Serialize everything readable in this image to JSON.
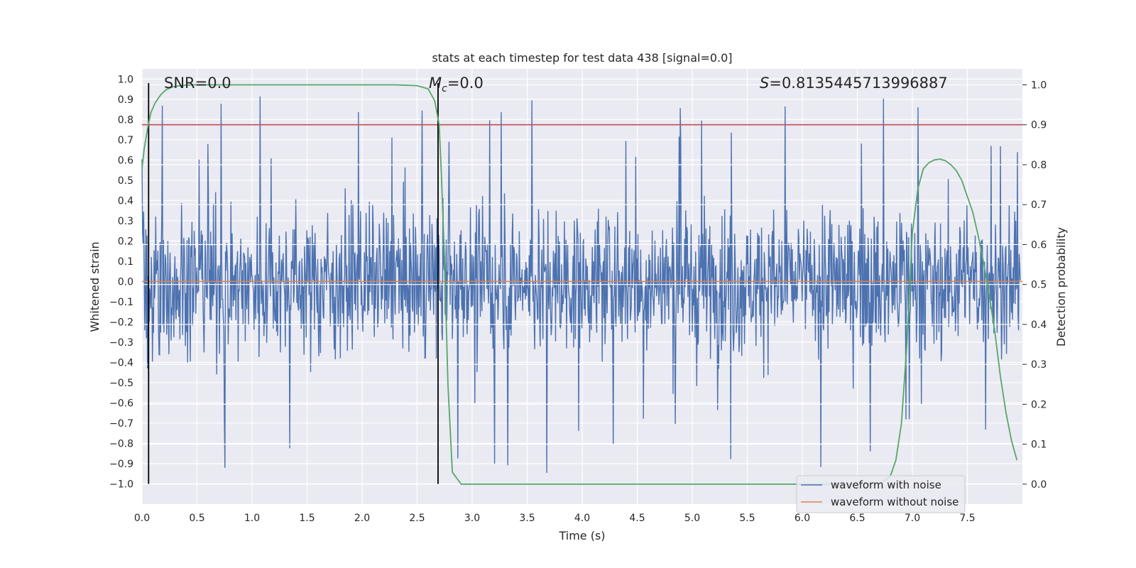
{
  "chart_data": {
    "type": "line",
    "title": "stats at each timestep for test data 438 [signal=0.0]",
    "xlabel": "Time (s)",
    "ylabel": "Whitened strain",
    "y2label": "Detection probability",
    "xlim": [
      0.0,
      8.0
    ],
    "ylim": [
      -1.1,
      1.05
    ],
    "y2lim": [
      -0.05,
      1.04
    ],
    "x_ticks": [
      0.0,
      0.5,
      1.0,
      1.5,
      2.0,
      2.5,
      3.0,
      3.5,
      4.0,
      4.5,
      5.0,
      5.5,
      6.0,
      6.5,
      7.0,
      7.5
    ],
    "x_tick_labels": [
      "0.0",
      "0.5",
      "1.0",
      "1.5",
      "2.0",
      "2.5",
      "3.0",
      "3.5",
      "4.0",
      "4.5",
      "5.0",
      "5.5",
      "6.0",
      "6.5",
      "7.0",
      "7.5"
    ],
    "y_ticks": [
      1.0,
      0.9,
      0.8,
      0.7,
      0.6,
      0.5,
      0.4,
      0.3,
      0.2,
      0.1,
      0.0,
      -0.1,
      -0.2,
      -0.3,
      -0.4,
      -0.5,
      -0.6,
      -0.7,
      -0.8,
      -0.9,
      -1.0
    ],
    "y_tick_labels": [
      "1.0",
      "0.9",
      "0.8",
      "0.7",
      "0.6",
      "0.5",
      "0.4",
      "0.3",
      "0.2",
      "0.1",
      "0.0",
      "−0.1",
      "−0.2",
      "−0.3",
      "−0.4",
      "−0.5",
      "−0.6",
      "−0.7",
      "−0.8",
      "−0.9",
      "−1.0"
    ],
    "y2_ticks": [
      1.0,
      0.9,
      0.8,
      0.7,
      0.6,
      0.5,
      0.4,
      0.3,
      0.2,
      0.1,
      0.0
    ],
    "y2_tick_labels": [
      "1.0",
      "0.9",
      "0.8",
      "0.7",
      "0.6",
      "0.5",
      "0.4",
      "0.3",
      "0.2",
      "0.1",
      "0.0"
    ],
    "annotations": {
      "snr_label": "SNR=0.0",
      "mc_symbol": "M",
      "mc_subscript": "c",
      "mc_value": "=0.0",
      "s_symbol": "S",
      "s_value": "=0.8135445713996887"
    },
    "vertical_lines_x": [
      0.06,
      2.69
    ],
    "threshold_line_y2": 0.9,
    "legend": {
      "position": "lower-right",
      "entries": [
        "waveform with noise",
        "waveform without noise"
      ]
    },
    "series": [
      {
        "name": "waveform with noise",
        "axis": "left",
        "color": "#4c72b0",
        "description": "whitened noisy strain, dense noise between about -0.9 and 0.97",
        "sample_count": 1600,
        "amplitude_range": [
          -1.0,
          0.97
        ]
      },
      {
        "name": "waveform without noise",
        "axis": "left",
        "color": "#dd8452",
        "x": [
          0.0,
          8.0
        ],
        "y": [
          0.0,
          0.0
        ]
      },
      {
        "name": "detection probability",
        "axis": "right",
        "color": "#55a868",
        "x": [
          0.0,
          0.02,
          0.05,
          0.08,
          0.12,
          0.17,
          0.22,
          0.28,
          0.35,
          0.45,
          0.6,
          1.0,
          1.5,
          2.0,
          2.3,
          2.5,
          2.6,
          2.66,
          2.7,
          2.72,
          2.75,
          2.78,
          2.82,
          2.9,
          3.0,
          3.5,
          4.0,
          5.0,
          6.0,
          6.7,
          6.8,
          6.85,
          6.9,
          6.95,
          7.0,
          7.05,
          7.1,
          7.15,
          7.2,
          7.25,
          7.3,
          7.35,
          7.4,
          7.45,
          7.5,
          7.55,
          7.6,
          7.65,
          7.7,
          7.75,
          7.8,
          7.85,
          7.9,
          7.95
        ],
        "y": [
          0.79,
          0.84,
          0.89,
          0.93,
          0.955,
          0.975,
          0.988,
          0.995,
          0.998,
          1.0,
          1.0,
          1.0,
          1.0,
          1.0,
          1.0,
          0.998,
          0.99,
          0.96,
          0.9,
          0.78,
          0.55,
          0.25,
          0.03,
          0.0,
          0.0,
          0.0,
          0.0,
          0.0,
          0.0,
          0.0,
          0.02,
          0.06,
          0.15,
          0.35,
          0.63,
          0.74,
          0.79,
          0.805,
          0.812,
          0.814,
          0.81,
          0.8,
          0.785,
          0.76,
          0.72,
          0.68,
          0.62,
          0.55,
          0.47,
          0.38,
          0.27,
          0.18,
          0.11,
          0.06
        ]
      }
    ]
  }
}
